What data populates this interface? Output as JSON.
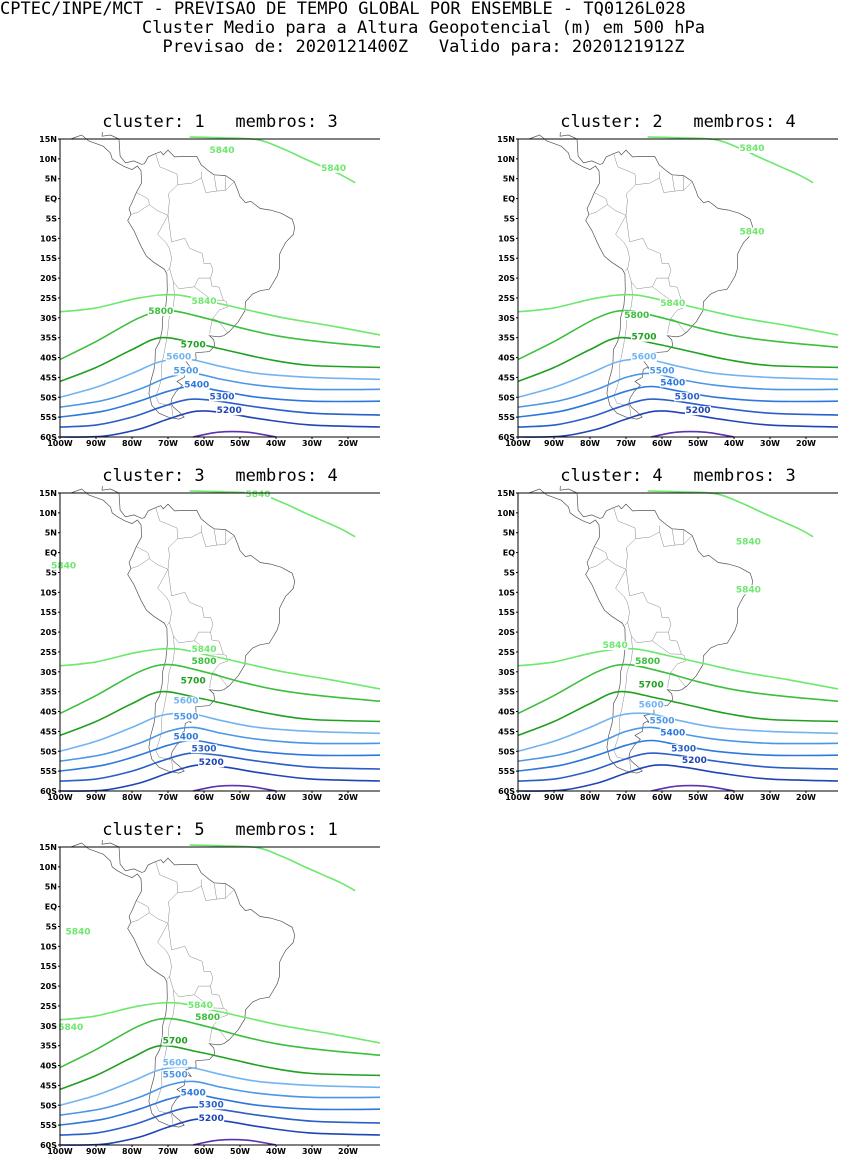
{
  "header": {
    "line1": "CPTEC/INPE/MCT - PREVISAO DE TEMPO GLOBAL POR ENSEMBLE - TQ0126L028",
    "line2": "Cluster Medio para a Altura Geopotencial (m) em 500 hPa",
    "line3": "Previsao de: 2020121400Z   Valido para: 2020121912Z"
  },
  "lat_ticks": [
    "15N",
    "10N",
    "5N",
    "EQ",
    "5S",
    "10S",
    "15S",
    "20S",
    "25S",
    "30S",
    "35S",
    "40S",
    "45S",
    "50S",
    "55S",
    "60S"
  ],
  "lon_ticks": [
    "100W",
    "90W",
    "80W",
    "70W",
    "60W",
    "50W",
    "40W",
    "30W",
    "20W"
  ],
  "contour_colors": {
    "5840": "#6de86d",
    "5800": "#3cbf3c",
    "5700": "#1fa01f",
    "5600": "#72b4f0",
    "5500": "#4b96e6",
    "5400": "#2d78dc",
    "5300": "#2a5fc8",
    "5200": "#1f45b4",
    "5100": "#5a32b4"
  },
  "panels": [
    {
      "title": "cluster: 1   membros: 3",
      "labels": [
        {
          "text": "5840",
          "lon": -55,
          "lat": 11.5,
          "level": "5840"
        },
        {
          "text": "5840",
          "lon": -24,
          "lat": 7,
          "level": "5840"
        },
        {
          "text": "5840",
          "lon": -60,
          "lat": -26.5,
          "level": "5840"
        },
        {
          "text": "5800",
          "lon": -72,
          "lat": -29,
          "level": "5800"
        },
        {
          "text": "5700",
          "lon": -63,
          "lat": -37.5,
          "level": "5700"
        },
        {
          "text": "5600",
          "lon": -67,
          "lat": -40.5,
          "level": "5600"
        },
        {
          "text": "5500",
          "lon": -65,
          "lat": -44,
          "level": "5500"
        },
        {
          "text": "5400",
          "lon": -62,
          "lat": -47.5,
          "level": "5400"
        },
        {
          "text": "5300",
          "lon": -55,
          "lat": -50.5,
          "level": "5300"
        },
        {
          "text": "5200",
          "lon": -53,
          "lat": -54,
          "level": "5200"
        }
      ]
    },
    {
      "title": "cluster: 2   membros: 4",
      "labels": [
        {
          "text": "5840",
          "lon": -35,
          "lat": 12,
          "level": "5840"
        },
        {
          "text": "5840",
          "lon": -35,
          "lat": -9,
          "level": "5840"
        },
        {
          "text": "5840",
          "lon": -57,
          "lat": -27,
          "level": "5840"
        },
        {
          "text": "5800",
          "lon": -67,
          "lat": -30,
          "level": "5800"
        },
        {
          "text": "5700",
          "lon": -65,
          "lat": -35.5,
          "level": "5700"
        },
        {
          "text": "5600",
          "lon": -65,
          "lat": -40.5,
          "level": "5600"
        },
        {
          "text": "5500",
          "lon": -60,
          "lat": -44,
          "level": "5500"
        },
        {
          "text": "5400",
          "lon": -57,
          "lat": -47,
          "level": "5400"
        },
        {
          "text": "5300",
          "lon": -53,
          "lat": -50.5,
          "level": "5300"
        },
        {
          "text": "5200",
          "lon": -50,
          "lat": -54,
          "level": "5200"
        }
      ]
    },
    {
      "title": "cluster: 3   membros: 4",
      "labels": [
        {
          "text": "5840",
          "lon": -45,
          "lat": 14,
          "level": "5840"
        },
        {
          "text": "5840",
          "lon": -99,
          "lat": -4,
          "level": "5840"
        },
        {
          "text": "5840",
          "lon": -60,
          "lat": -25,
          "level": "5840"
        },
        {
          "text": "5800",
          "lon": -60,
          "lat": -28,
          "level": "5800"
        },
        {
          "text": "5700",
          "lon": -63,
          "lat": -33,
          "level": "5700"
        },
        {
          "text": "5600",
          "lon": -65,
          "lat": -38,
          "level": "5600"
        },
        {
          "text": "5500",
          "lon": -65,
          "lat": -42,
          "level": "5500"
        },
        {
          "text": "5400",
          "lon": -65,
          "lat": -47,
          "level": "5400"
        },
        {
          "text": "5300",
          "lon": -60,
          "lat": -50,
          "level": "5300"
        },
        {
          "text": "5200",
          "lon": -58,
          "lat": -53.5,
          "level": "5200"
        }
      ]
    },
    {
      "title": "cluster: 4   membros: 3",
      "labels": [
        {
          "text": "5840",
          "lon": -36,
          "lat": 2,
          "level": "5840"
        },
        {
          "text": "5840",
          "lon": -36,
          "lat": -10,
          "level": "5840"
        },
        {
          "text": "5840",
          "lon": -73,
          "lat": -24,
          "level": "5840"
        },
        {
          "text": "5800",
          "lon": -64,
          "lat": -28,
          "level": "5800"
        },
        {
          "text": "5700",
          "lon": -63,
          "lat": -34,
          "level": "5700"
        },
        {
          "text": "5600",
          "lon": -63,
          "lat": -39,
          "level": "5600"
        },
        {
          "text": "5500",
          "lon": -60,
          "lat": -43,
          "level": "5500"
        },
        {
          "text": "5400",
          "lon": -57,
          "lat": -46,
          "level": "5400"
        },
        {
          "text": "5300",
          "lon": -54,
          "lat": -50,
          "level": "5300"
        },
        {
          "text": "5200",
          "lon": -51,
          "lat": -53,
          "level": "5200"
        }
      ]
    },
    {
      "title": "cluster: 5   membros: 1",
      "labels": [
        {
          "text": "5840",
          "lon": -95,
          "lat": -7,
          "level": "5840"
        },
        {
          "text": "5840",
          "lon": -97,
          "lat": -31,
          "level": "5840"
        },
        {
          "text": "5840",
          "lon": -61,
          "lat": -25.5,
          "level": "5840"
        },
        {
          "text": "5800",
          "lon": -59,
          "lat": -28.5,
          "level": "5800"
        },
        {
          "text": "5700",
          "lon": -68,
          "lat": -34.5,
          "level": "5700"
        },
        {
          "text": "5600",
          "lon": -68,
          "lat": -40,
          "level": "5600"
        },
        {
          "text": "5500",
          "lon": -68,
          "lat": -43,
          "level": "5500"
        },
        {
          "text": "5400",
          "lon": -63,
          "lat": -47.5,
          "level": "5400"
        },
        {
          "text": "5300",
          "lon": -58,
          "lat": -50.5,
          "level": "5300"
        },
        {
          "text": "5200",
          "lon": -58,
          "lat": -54,
          "level": "5200"
        }
      ]
    }
  ]
}
